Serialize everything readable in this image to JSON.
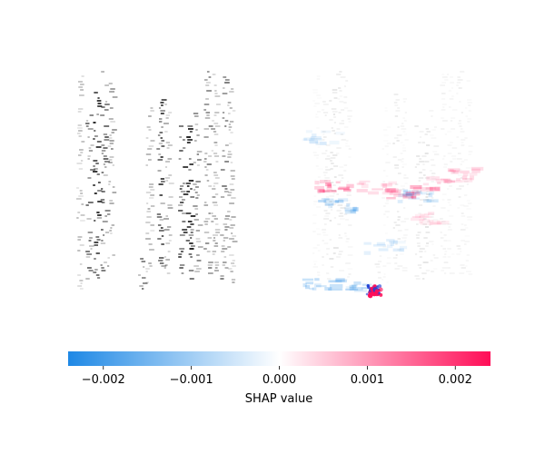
{
  "chart_data": {
    "type": "heatmap",
    "panels": [
      {
        "name": "input-spectrogram",
        "colormap": "gray_r"
      },
      {
        "name": "shap-overlay",
        "colormap": "shap_red_blue"
      }
    ],
    "colorbar": {
      "label": "SHAP value",
      "vmin": -0.0024,
      "vmax": 0.0024,
      "ticks": [
        -0.002,
        -0.001,
        0.0,
        0.001,
        0.002
      ],
      "tick_labels": [
        "−0.002",
        "−0.001",
        "0.000",
        "0.001",
        "0.002"
      ],
      "colors": {
        "negative": "#1e88e5",
        "zero": "#ffffff",
        "positive": "#ff0d57"
      }
    }
  }
}
